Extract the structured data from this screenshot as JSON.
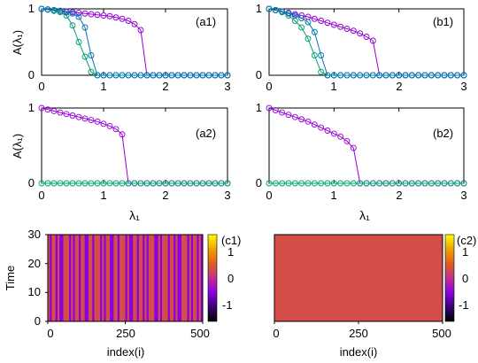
{
  "chart_data": [
    {
      "type": "line",
      "panel_label": "(a1)",
      "ylabel": "A(λ₁)",
      "xlabel": "",
      "xlim": [
        0,
        3
      ],
      "ylim": [
        0,
        1
      ],
      "x_ticks": [
        "0",
        "1",
        "2",
        "3"
      ],
      "y_ticks": [
        "0",
        "1"
      ],
      "series": [
        {
          "color": "#9400d3",
          "x": [
            0,
            0.1,
            0.2,
            0.3,
            0.4,
            0.5,
            0.6,
            0.7,
            0.8,
            0.9,
            1.0,
            1.1,
            1.2,
            1.3,
            1.4,
            1.5,
            1.6,
            1.7,
            1.8,
            1.9,
            2.0,
            2.1,
            2.2,
            2.3,
            2.4,
            2.5,
            2.6,
            2.7,
            2.8,
            2.9,
            3.0
          ],
          "y": [
            1.0,
            0.99,
            0.98,
            0.97,
            0.96,
            0.95,
            0.94,
            0.93,
            0.92,
            0.91,
            0.9,
            0.89,
            0.87,
            0.85,
            0.82,
            0.77,
            0.68,
            0,
            0,
            0,
            0,
            0,
            0,
            0,
            0,
            0,
            0,
            0,
            0,
            0,
            0
          ]
        },
        {
          "color": "#009e73",
          "x": [
            0,
            0.1,
            0.2,
            0.3,
            0.4,
            0.5,
            0.6,
            0.7,
            0.8,
            0.9,
            1.0,
            1.1,
            1.2,
            1.3,
            1.4,
            1.5,
            1.6,
            1.7,
            1.8,
            1.9,
            2.0,
            2.1,
            2.2,
            2.3,
            2.4,
            2.5,
            2.6,
            2.7,
            2.8,
            2.9,
            3.0
          ],
          "y": [
            1.0,
            0.99,
            0.97,
            0.95,
            0.9,
            0.75,
            0.5,
            0.28,
            0.05,
            0,
            0,
            0,
            0,
            0,
            0,
            0,
            0,
            0,
            0,
            0,
            0,
            0,
            0,
            0,
            0,
            0,
            0,
            0,
            0,
            0,
            0
          ]
        },
        {
          "color": "#0072b2",
          "x": [
            0,
            0.1,
            0.2,
            0.3,
            0.4,
            0.5,
            0.6,
            0.7,
            0.8,
            0.9,
            1.0,
            1.1,
            1.2,
            1.3,
            1.4,
            1.5,
            1.6,
            1.7,
            1.8,
            1.9,
            2.0,
            2.1,
            2.2,
            2.3,
            2.4,
            2.5,
            2.6,
            2.7,
            2.8,
            2.9,
            3.0
          ],
          "y": [
            1.0,
            0.99,
            0.98,
            0.97,
            0.95,
            0.93,
            0.88,
            0.72,
            0.3,
            0,
            0,
            0,
            0,
            0,
            0,
            0,
            0,
            0,
            0,
            0,
            0,
            0,
            0,
            0,
            0,
            0,
            0,
            0,
            0,
            0,
            0
          ]
        }
      ]
    },
    {
      "type": "line",
      "panel_label": "(b1)",
      "ylabel": "",
      "xlabel": "",
      "xlim": [
        0,
        3
      ],
      "ylim": [
        0,
        1
      ],
      "x_ticks": [
        "0",
        "1",
        "2",
        "3"
      ],
      "y_ticks": [
        "0",
        "1"
      ],
      "series": [
        {
          "color": "#9400d3",
          "x": [
            0,
            0.1,
            0.2,
            0.3,
            0.4,
            0.5,
            0.6,
            0.7,
            0.8,
            0.9,
            1.0,
            1.1,
            1.2,
            1.3,
            1.4,
            1.5,
            1.6,
            1.7,
            1.8,
            1.9,
            2.0,
            2.1,
            2.2,
            2.3,
            2.4,
            2.5,
            2.6,
            2.7,
            2.8,
            2.9,
            3.0
          ],
          "y": [
            1.0,
            0.98,
            0.96,
            0.94,
            0.92,
            0.9,
            0.88,
            0.85,
            0.82,
            0.79,
            0.76,
            0.73,
            0.7,
            0.67,
            0.63,
            0.58,
            0.52,
            0,
            0,
            0,
            0,
            0,
            0,
            0,
            0,
            0,
            0,
            0,
            0,
            0,
            0
          ]
        },
        {
          "color": "#009e73",
          "x": [
            0,
            0.1,
            0.2,
            0.3,
            0.4,
            0.5,
            0.6,
            0.7,
            0.8,
            0.9,
            1.0,
            1.1,
            1.2,
            1.3,
            1.4,
            1.5,
            1.6,
            1.7,
            1.8,
            1.9,
            2.0,
            2.1,
            2.2,
            2.3,
            2.4,
            2.5,
            2.6,
            2.7,
            2.8,
            2.9,
            3.0
          ],
          "y": [
            1.0,
            0.98,
            0.95,
            0.9,
            0.82,
            0.72,
            0.55,
            0.3,
            0.05,
            0,
            0,
            0,
            0,
            0,
            0,
            0,
            0,
            0,
            0,
            0,
            0,
            0,
            0,
            0,
            0,
            0,
            0,
            0,
            0,
            0,
            0
          ]
        },
        {
          "color": "#0072b2",
          "x": [
            0,
            0.1,
            0.2,
            0.3,
            0.4,
            0.5,
            0.6,
            0.7,
            0.8,
            0.9,
            1.0,
            1.1,
            1.2,
            1.3,
            1.4,
            1.5,
            1.6,
            1.7,
            1.8,
            1.9,
            2.0,
            2.1,
            2.2,
            2.3,
            2.4,
            2.5,
            2.6,
            2.7,
            2.8,
            2.9,
            3.0
          ],
          "y": [
            1.0,
            0.98,
            0.96,
            0.93,
            0.9,
            0.86,
            0.8,
            0.65,
            0.3,
            0,
            0,
            0,
            0,
            0,
            0,
            0,
            0,
            0,
            0,
            0,
            0,
            0,
            0,
            0,
            0,
            0,
            0,
            0,
            0,
            0,
            0
          ]
        }
      ]
    },
    {
      "type": "line",
      "panel_label": "(a2)",
      "ylabel": "A(λ₁)",
      "xlabel": "λ₁",
      "xlim": [
        0,
        3
      ],
      "ylim": [
        0,
        1
      ],
      "x_ticks": [
        "0",
        "1",
        "2",
        "3"
      ],
      "y_ticks": [
        "0",
        "1"
      ],
      "series": [
        {
          "color": "#9400d3",
          "x": [
            0,
            0.1,
            0.2,
            0.3,
            0.4,
            0.5,
            0.6,
            0.7,
            0.8,
            0.9,
            1.0,
            1.1,
            1.2,
            1.3,
            1.4,
            1.5,
            1.6,
            1.7,
            1.8,
            1.9,
            2.0,
            2.1,
            2.2,
            2.3,
            2.4,
            2.5,
            2.6,
            2.7,
            2.8,
            2.9,
            3.0
          ],
          "y": [
            1.0,
            0.98,
            0.96,
            0.94,
            0.92,
            0.9,
            0.88,
            0.86,
            0.84,
            0.82,
            0.79,
            0.76,
            0.72,
            0.65,
            0,
            0,
            0,
            0,
            0,
            0,
            0,
            0,
            0,
            0,
            0,
            0,
            0,
            0,
            0,
            0,
            0
          ]
        },
        {
          "color": "#009e73",
          "x": [
            0,
            0.1,
            0.2,
            0.3,
            0.4,
            0.5,
            0.6,
            0.7,
            0.8,
            0.9,
            1.0,
            1.1,
            1.2,
            1.3,
            1.4,
            1.5,
            1.6,
            1.7,
            1.8,
            1.9,
            2.0,
            2.1,
            2.2,
            2.3,
            2.4,
            2.5,
            2.6,
            2.7,
            2.8,
            2.9,
            3.0
          ],
          "y": [
            0,
            0,
            0,
            0,
            0,
            0,
            0,
            0,
            0,
            0,
            0,
            0,
            0,
            0,
            0,
            0,
            0,
            0,
            0,
            0,
            0,
            0,
            0,
            0,
            0,
            0,
            0,
            0,
            0,
            0,
            0
          ]
        }
      ]
    },
    {
      "type": "line",
      "panel_label": "(b2)",
      "ylabel": "",
      "xlabel": "λ₁",
      "xlim": [
        0,
        3
      ],
      "ylim": [
        0,
        1
      ],
      "x_ticks": [
        "0",
        "1",
        "2",
        "3"
      ],
      "y_ticks": [
        "0",
        "1"
      ],
      "series": [
        {
          "color": "#9400d3",
          "x": [
            0,
            0.1,
            0.2,
            0.3,
            0.4,
            0.5,
            0.6,
            0.7,
            0.8,
            0.9,
            1.0,
            1.1,
            1.2,
            1.3,
            1.4,
            1.5,
            1.6,
            1.7,
            1.8,
            1.9,
            2.0,
            2.1,
            2.2,
            2.3,
            2.4,
            2.5,
            2.6,
            2.7,
            2.8,
            2.9,
            3.0
          ],
          "y": [
            1.0,
            0.97,
            0.94,
            0.91,
            0.88,
            0.85,
            0.82,
            0.78,
            0.74,
            0.7,
            0.66,
            0.62,
            0.56,
            0.47,
            0,
            0,
            0,
            0,
            0,
            0,
            0,
            0,
            0,
            0,
            0,
            0,
            0,
            0,
            0,
            0,
            0
          ]
        },
        {
          "color": "#009e73",
          "x": [
            0,
            0.1,
            0.2,
            0.3,
            0.4,
            0.5,
            0.6,
            0.7,
            0.8,
            0.9,
            1.0,
            1.1,
            1.2,
            1.3,
            1.4,
            1.5,
            1.6,
            1.7,
            1.8,
            1.9,
            2.0,
            2.1,
            2.2,
            2.3,
            2.4,
            2.5,
            2.6,
            2.7,
            2.8,
            2.9,
            3.0
          ],
          "y": [
            0,
            0,
            0,
            0,
            0,
            0,
            0,
            0,
            0,
            0,
            0,
            0,
            0,
            0,
            0,
            0,
            0,
            0,
            0,
            0,
            0,
            0,
            0,
            0,
            0,
            0,
            0,
            0,
            0,
            0,
            0
          ]
        }
      ]
    },
    {
      "type": "heatmap",
      "panel_label": "(c1)",
      "ylabel": "Time",
      "xlabel": "index(i)",
      "xlim": [
        0,
        500
      ],
      "ylim": [
        0,
        30
      ],
      "x_ticks": [
        "0",
        "250",
        "500"
      ],
      "y_ticks": [
        "0",
        "10",
        "20",
        "30"
      ],
      "colorbar_ticks": [
        "1",
        "0",
        "-1"
      ],
      "colorbar_range": [
        -1.5,
        1.5
      ],
      "pattern": "vertical stripes; each oscillator index holds a constant value over time",
      "column_values_sample": [
        0.3,
        -0.5,
        0.3,
        0.3,
        -0.5,
        0.3,
        -0.5,
        -0.5,
        0.3,
        0.3,
        0.3,
        -0.5,
        0.3,
        -0.5,
        0.3,
        0.3,
        -0.5,
        0.3,
        0.3,
        -0.5,
        -0.5,
        0.3,
        0.3,
        -0.5,
        0.3,
        0.3,
        0.3,
        -0.5,
        0.3,
        -0.5,
        0.3,
        0.3,
        -0.5,
        -0.5,
        0.3,
        0.3,
        -0.5,
        0.3,
        0.3,
        0.3,
        -0.5,
        0.3,
        -0.5,
        -0.5,
        0.3,
        0.3,
        -0.5,
        0.3,
        0.3,
        -0.5,
        0.3,
        -0.5,
        0.3,
        0.3,
        0.3,
        -0.5,
        -0.5,
        0.3,
        -0.5,
        0.3,
        0.3,
        0.3,
        -0.5,
        0.3,
        0.3,
        -0.5,
        0.3,
        -0.5,
        -0.5,
        0.3,
        0.3,
        0.3,
        -0.5,
        0.3,
        -0.5,
        0.3,
        0.3,
        -0.5,
        0.3,
        -0.5
      ]
    },
    {
      "type": "heatmap",
      "panel_label": "(c2)",
      "ylabel": "",
      "xlabel": "index(i)",
      "xlim": [
        0,
        500
      ],
      "ylim": [
        0,
        30
      ],
      "x_ticks": [
        "0",
        "250",
        "500"
      ],
      "y_ticks": [],
      "colorbar_ticks": [
        "1",
        "0",
        "-1"
      ],
      "colorbar_range": [
        -1.5,
        1.5
      ],
      "pattern": "uniform field",
      "uniform_value": 0.3
    }
  ]
}
